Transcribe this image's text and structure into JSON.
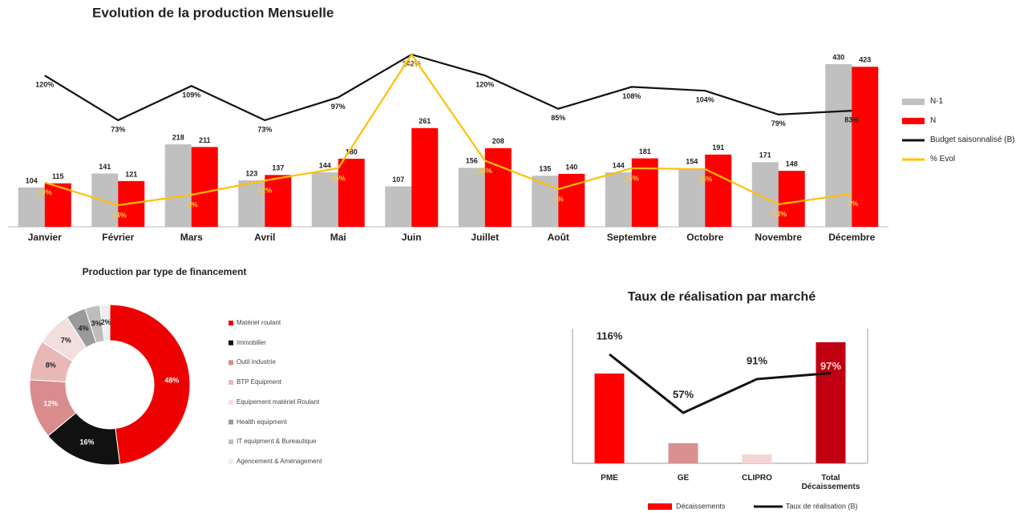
{
  "chart_data": [
    {
      "type": "bar",
      "title": "Evolution de la production Mensuelle",
      "categories": [
        "Janvier",
        "Février",
        "Mars",
        "Avril",
        "Mai",
        "Juin",
        "Juillet",
        "Août",
        "Septembre",
        "Octobre",
        "Novembre",
        "Décembre"
      ],
      "series": [
        {
          "name": "N-1",
          "color": "#c0c0c0",
          "values": [
            104,
            141,
            218,
            123,
            144,
            107,
            156,
            135,
            144,
            154,
            171,
            430
          ]
        },
        {
          "name": "N",
          "color": "#ff0000",
          "values": [
            115,
            121,
            211,
            137,
            180,
            261,
            208,
            140,
            181,
            191,
            148,
            423
          ]
        },
        {
          "name": "Budget saisonnalisé (B)",
          "type": "line",
          "color": "#111111",
          "values": [
            120,
            73,
            109,
            73,
            97,
            142,
            120,
            85,
            108,
            104,
            79,
            83
          ],
          "value_labels": [
            "120%",
            "73%",
            "109%",
            "73%",
            "97%",
            "142%",
            "120%",
            "85%",
            "108%",
            "104%",
            "79%",
            "83%"
          ]
        },
        {
          "name": "% Evol",
          "type": "line",
          "color": "#ffc000",
          "values": [
            10,
            -14,
            -3,
            12,
            25,
            145,
            33,
            3,
            25,
            24,
            -13,
            -2
          ],
          "value_labels": [
            "10%",
            "-14%",
            "-3%",
            "12%",
            "25%",
            "145%",
            "33%",
            "3%",
            "25%",
            "24%",
            "-13%",
            "-2%"
          ]
        }
      ]
    },
    {
      "type": "pie",
      "title": "Production par type de financement",
      "categories": [
        "Matériel roulant",
        "Immobilier",
        "Outil industrie",
        "BTP Equipment",
        "Equipement matériel Roulant",
        "Health equipment",
        "IT equipment & Bureautique",
        "Agencement & Aménagement"
      ],
      "values": [
        48,
        16,
        12,
        8,
        7,
        4,
        3,
        2
      ],
      "value_labels": [
        "48%",
        "16%",
        "12%",
        "8%",
        "7%",
        "4%",
        "3%",
        "2%"
      ],
      "colors": [
        "#ee0000",
        "#111111",
        "#d98c8c",
        "#e8b8b8",
        "#f3dede",
        "#9a9a9a",
        "#bdbdbd",
        "#eeeeee"
      ]
    },
    {
      "type": "bar",
      "title": "Taux de réalisation par marché",
      "categories": [
        "PME",
        "GE",
        "CLIPRO",
        "Total Décaissements"
      ],
      "series": [
        {
          "name": "Décaissements",
          "color": "#ff0000",
          "colors": [
            "#ff0000",
            "#d99090",
            "#f4d4d4",
            "#c00010"
          ],
          "values": [
            112,
            25,
            11,
            151
          ]
        },
        {
          "name": "Taux de réalisation (B)",
          "type": "line",
          "color": "#111111",
          "values": [
            116,
            57,
            91,
            97
          ],
          "value_labels": [
            "116%",
            "57%",
            "91%",
            "97%"
          ]
        }
      ]
    }
  ]
}
